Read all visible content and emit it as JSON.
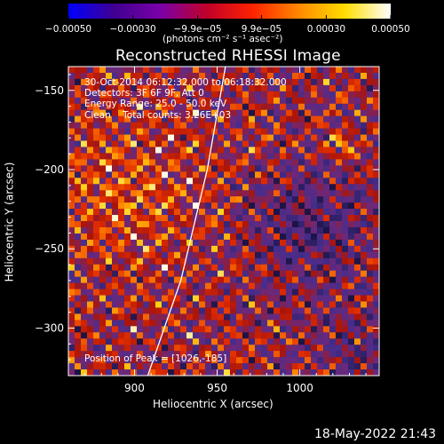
{
  "chart_data": {
    "type": "heatmap",
    "title": "Reconstructed RHESSI Image",
    "xlabel": "Heliocentric X (arcsec)",
    "ylabel": "Heliocentric Y (arcsec)",
    "xlim": [
      860,
      1048
    ],
    "ylim": [
      -330,
      -135
    ],
    "xticks": [
      "900",
      "950",
      "1000"
    ],
    "xtick_values": [
      900,
      950,
      1000
    ],
    "yticks": [
      "-150",
      "-200",
      "-250",
      "-300"
    ],
    "ytick_values": [
      -150,
      -200,
      -250,
      -300
    ],
    "colorbar": {
      "ticks": [
        "-0.00050",
        "-0.00030",
        "-9.9e-05",
        "9.9e-05",
        "0.00030",
        "0.00050"
      ],
      "tick_values": [
        -0.0005,
        -0.0003,
        -9.9e-05,
        9.9e-05,
        0.0003,
        0.0005
      ],
      "range": [
        -0.0005,
        0.0005
      ],
      "label": "(photons cm⁻² s⁻¹ asec⁻²)",
      "colormap": [
        "#0000ff",
        "#400090",
        "#7a00a8",
        "#c0002a",
        "#ff2200",
        "#ff8800",
        "#ffdd00",
        "#ffffff"
      ]
    },
    "annotations": [
      "30-Oct-2014 06:12:32.000 to 06:18:32.000",
      "Detectors: 3F 6F 9F, Att 0",
      "Energy Range: 25.0 - 50.0 keV",
      "Clean    Total counts: 3.26E+03"
    ],
    "peak_label": "Position of Peak = [1026,-185]",
    "peak": [
      1026,
      -185
    ],
    "limb_line": [
      [
        908,
        -330
      ],
      [
        928,
        -270
      ],
      [
        944,
        -200
      ],
      [
        955,
        -135
      ]
    ],
    "grid": false
  },
  "footer": {
    "timestamp": "18-May-2022 21:43"
  }
}
